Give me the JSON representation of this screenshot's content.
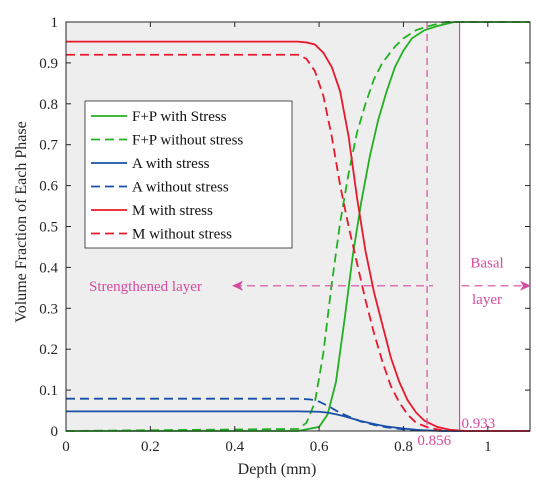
{
  "chart_data": {
    "type": "line",
    "xlabel": "Depth (mm)",
    "ylabel": "Volume Fraction of Each Phase",
    "xlim": [
      0,
      1.1
    ],
    "ylim": [
      0,
      1
    ],
    "xticks": [
      0,
      0.2,
      0.4,
      0.6,
      0.8,
      1
    ],
    "xtick_labels": [
      "0",
      "0.2",
      "0.4",
      "0.6",
      "0.8",
      "1"
    ],
    "yticks": [
      0,
      0.1,
      0.2,
      0.3,
      0.4,
      0.5,
      0.6,
      0.7,
      0.8,
      0.9,
      1
    ],
    "ytick_labels": [
      "0",
      "0.1",
      "0.2",
      "0.3",
      "0.4",
      "0.5",
      "0.6",
      "0.7",
      "0.8",
      "0.9",
      "1"
    ],
    "grid": false,
    "legend_position": "center-left",
    "series": [
      {
        "name": "F+P with Stress",
        "color": "#22b022",
        "dash": "solid",
        "x": [
          0,
          0.55,
          0.6,
          0.62,
          0.64,
          0.66,
          0.68,
          0.7,
          0.72,
          0.74,
          0.76,
          0.78,
          0.8,
          0.82,
          0.85,
          0.88,
          0.9,
          0.92,
          0.95,
          1.0,
          1.1
        ],
        "y": [
          0,
          0,
          0.01,
          0.04,
          0.12,
          0.27,
          0.43,
          0.56,
          0.67,
          0.76,
          0.83,
          0.89,
          0.93,
          0.96,
          0.98,
          0.99,
          0.995,
          1,
          1,
          1,
          1
        ]
      },
      {
        "name": "F+P without stress",
        "color": "#22b022",
        "dash": "dashed",
        "x": [
          0,
          0.55,
          0.57,
          0.59,
          0.61,
          0.63,
          0.65,
          0.67,
          0.69,
          0.71,
          0.73,
          0.75,
          0.78,
          0.8,
          0.83,
          0.86,
          0.9,
          0.95,
          1.0,
          1.1
        ],
        "y": [
          0,
          0.005,
          0.02,
          0.07,
          0.19,
          0.36,
          0.51,
          0.63,
          0.73,
          0.8,
          0.86,
          0.9,
          0.94,
          0.96,
          0.98,
          0.99,
          1,
          1,
          1,
          1
        ]
      },
      {
        "name": "A with stress",
        "color": "#1a4fa8",
        "dash": "solid",
        "x": [
          0,
          0.55,
          0.6,
          0.62,
          0.64,
          0.66,
          0.68,
          0.7,
          0.73,
          0.76,
          0.8,
          0.83,
          0.86,
          0.9,
          0.95,
          1.0,
          1.1
        ],
        "y": [
          0.048,
          0.048,
          0.047,
          0.045,
          0.041,
          0.036,
          0.03,
          0.024,
          0.017,
          0.011,
          0.006,
          0.003,
          0.001,
          0,
          0,
          0,
          0
        ]
      },
      {
        "name": "A without stress",
        "color": "#1a4fa8",
        "dash": "dashed",
        "x": [
          0,
          0.55,
          0.58,
          0.6,
          0.62,
          0.64,
          0.66,
          0.68,
          0.7,
          0.73,
          0.76,
          0.8,
          0.84,
          0.88,
          0.92,
          1.0,
          1.1
        ],
        "y": [
          0.079,
          0.079,
          0.077,
          0.072,
          0.062,
          0.05,
          0.04,
          0.031,
          0.023,
          0.015,
          0.009,
          0.004,
          0.002,
          0.0005,
          0,
          0,
          0
        ]
      },
      {
        "name": "M with stress",
        "color": "#e8192c",
        "dash": "solid",
        "x": [
          0,
          0.55,
          0.57,
          0.59,
          0.61,
          0.63,
          0.65,
          0.67,
          0.69,
          0.71,
          0.73,
          0.75,
          0.77,
          0.79,
          0.81,
          0.83,
          0.85,
          0.88,
          0.91,
          0.95,
          1.0,
          1.1
        ],
        "y": [
          0.952,
          0.952,
          0.95,
          0.945,
          0.925,
          0.89,
          0.83,
          0.72,
          0.57,
          0.44,
          0.34,
          0.26,
          0.18,
          0.12,
          0.075,
          0.045,
          0.025,
          0.01,
          0.003,
          0,
          0,
          0
        ]
      },
      {
        "name": "M without stress",
        "color": "#e8192c",
        "dash": "dashed",
        "x": [
          0,
          0.55,
          0.57,
          0.59,
          0.61,
          0.63,
          0.65,
          0.67,
          0.69,
          0.71,
          0.73,
          0.75,
          0.77,
          0.79,
          0.81,
          0.83,
          0.86,
          0.89,
          0.93,
          1.0,
          1.1
        ],
        "y": [
          0.92,
          0.92,
          0.91,
          0.88,
          0.82,
          0.72,
          0.6,
          0.5,
          0.41,
          0.32,
          0.24,
          0.17,
          0.11,
          0.07,
          0.04,
          0.02,
          0.008,
          0.002,
          0,
          0,
          0
        ]
      }
    ],
    "reference_lines": [
      {
        "x": 0.856,
        "label": "0.856",
        "color": "#d64aa0",
        "dash": "dashed"
      },
      {
        "x": 0.933,
        "label": "0.933",
        "color": "#d64aa0",
        "dash": "solid"
      }
    ],
    "shaded_region": {
      "x": [
        0,
        0.933
      ],
      "color": "#eeeeee"
    },
    "annotations": [
      {
        "text": "Strengthened layer",
        "color": "#d64aa0",
        "arrow": "left"
      },
      {
        "text": "Basal",
        "color": "#d64aa0"
      },
      {
        "text": "layer",
        "color": "#d64aa0",
        "arrow": "right"
      }
    ]
  }
}
